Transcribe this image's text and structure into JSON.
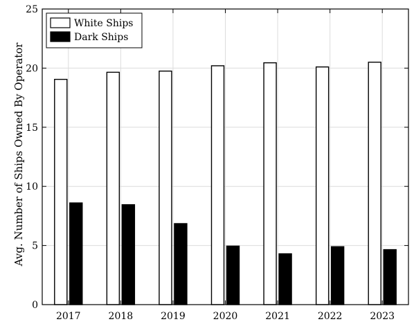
{
  "chart_data": {
    "type": "bar",
    "title": "",
    "xlabel": "",
    "ylabel": "Avg. Number of Ships Owned By Operator",
    "ylim": [
      0,
      25
    ],
    "yticks": [
      0,
      5,
      10,
      15,
      20,
      25
    ],
    "grid": true,
    "legend_position": "top-left",
    "categories": [
      "2017",
      "2018",
      "2019",
      "2020",
      "2021",
      "2022",
      "2023"
    ],
    "series": [
      {
        "name": "White Ships",
        "color": "#ffffff",
        "edge": "#000000",
        "values": [
          19.05,
          19.65,
          19.75,
          20.2,
          20.45,
          20.1,
          20.5
        ]
      },
      {
        "name": "Dark Ships",
        "color": "#000000",
        "edge": "#000000",
        "values": [
          8.6,
          8.45,
          6.85,
          4.95,
          4.3,
          4.9,
          4.65
        ]
      }
    ]
  }
}
